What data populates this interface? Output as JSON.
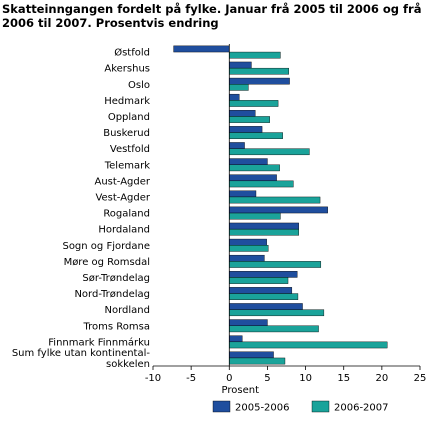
{
  "title": "Skatteinngangen fordelt på fylke. Januar frå 2005 til 2006 og frå 2006 til 2007. Prosentvis endring",
  "chart_data": {
    "type": "bar",
    "orientation": "horizontal",
    "categories": [
      "Østfold",
      "Akershus",
      "Oslo",
      "Hedmark",
      "Oppland",
      "Buskerud",
      "Vestfold",
      "Telemark",
      "Aust-Agder",
      "Vest-Agder",
      "Rogaland",
      "Hordaland",
      "Sogn og Fjordane",
      "Møre og Romsdal",
      "Sør-Trøndelag",
      "Nord-Trøndelag",
      "Nordland",
      "Troms Romsa",
      "Finnmark Finnmárku",
      [
        "Sum fylke utan kontinental-",
        "sokkelen"
      ]
    ],
    "series": [
      {
        "name": "2005-2006",
        "color": "#1f4e9e",
        "values": [
          -7.3,
          2.9,
          7.9,
          1.3,
          3.4,
          4.3,
          2.0,
          5.0,
          6.2,
          3.5,
          12.9,
          9.1,
          4.9,
          4.6,
          8.9,
          8.2,
          9.6,
          5.0,
          1.7,
          5.8
        ]
      },
      {
        "name": "2006-2007",
        "color": "#1aa39a",
        "values": [
          6.7,
          7.8,
          2.5,
          6.4,
          5.3,
          7.0,
          10.5,
          6.6,
          8.4,
          11.9,
          6.7,
          9.1,
          5.1,
          12.0,
          7.7,
          9.0,
          12.4,
          11.7,
          20.7,
          7.3
        ]
      }
    ],
    "xlabel": "Prosent",
    "xlim": [
      -10,
      25
    ],
    "xticks": [
      -10,
      -5,
      0,
      5,
      10,
      15,
      20,
      25
    ],
    "grid": false,
    "legend_position": "bottom"
  }
}
